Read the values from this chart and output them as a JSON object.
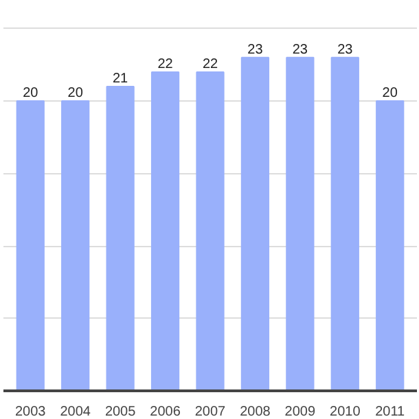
{
  "chart_data": {
    "type": "bar",
    "categories": [
      "2003",
      "2004",
      "2005",
      "2006",
      "2007",
      "2008",
      "2009",
      "2010",
      "2011"
    ],
    "values": [
      20,
      20,
      21,
      22,
      22,
      23,
      23,
      23,
      20
    ],
    "color": "#99b0fb",
    "data_labels": true,
    "grid": "y",
    "tick_labels": "x"
  }
}
